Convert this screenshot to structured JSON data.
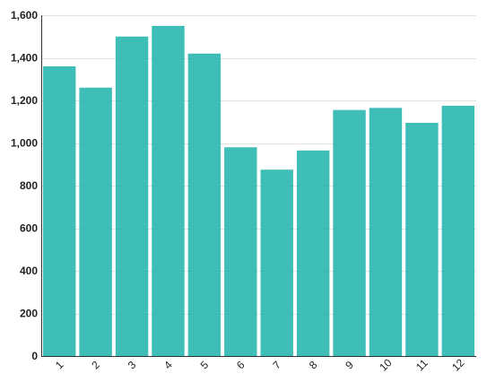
{
  "chart_data": {
    "type": "bar",
    "title": "",
    "xlabel": "",
    "ylabel": "",
    "categories": [
      "1",
      "2",
      "3",
      "4",
      "5",
      "6",
      "7",
      "8",
      "9",
      "10",
      "11",
      "12"
    ],
    "values": [
      1360,
      1260,
      1500,
      1550,
      1420,
      980,
      875,
      965,
      1155,
      1165,
      1095,
      1175
    ],
    "ylim": [
      0,
      1600
    ],
    "y_ticks": [
      0,
      200,
      400,
      600,
      800,
      1000,
      1200,
      1400,
      1600
    ],
    "y_tick_labels": [
      "0",
      "200",
      "400",
      "600",
      "800",
      "1,000",
      "1,200",
      "1,400",
      "1,600"
    ],
    "grid": true,
    "legend": false,
    "bar_color": "#2ab7b0",
    "x_label_rotation_deg": -45
  }
}
